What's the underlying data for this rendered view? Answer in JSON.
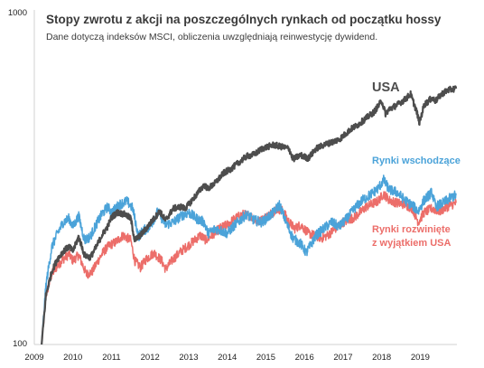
{
  "chart_data": {
    "type": "line",
    "title": "Stopy zwrotu z akcji na poszczególnych rynkach od początku hossy",
    "subtitle": "Dane dotyczą indeksów MSCI, obliczenia uwzględniają reinwestycję dywidend.",
    "yscale": "log",
    "ylim": [
      100,
      1000
    ],
    "yticks": [
      "100",
      "1000"
    ],
    "xlim": [
      2009.0,
      2019.95
    ],
    "xticks": [
      "2009",
      "2010",
      "2011",
      "2012",
      "2013",
      "2014",
      "2015",
      "2016",
      "2017",
      "2018",
      "2019"
    ],
    "grid": false,
    "legend": "inline labels",
    "colors": {
      "usa": "#4d4d4d",
      "em": "#4ba3d9",
      "dev": "#ec6e6a"
    },
    "series": [
      {
        "key": "usa",
        "name": "USA",
        "x": [
          2009.19,
          2009.3,
          2009.45,
          2009.6,
          2009.75,
          2009.9,
          2010.0,
          2010.15,
          2010.3,
          2010.45,
          2010.6,
          2010.75,
          2010.9,
          2011.0,
          2011.15,
          2011.35,
          2011.5,
          2011.6,
          2011.75,
          2011.9,
          2012.0,
          2012.25,
          2012.4,
          2012.6,
          2012.8,
          2012.9,
          2013.0,
          2013.4,
          2013.5,
          2013.7,
          2013.9,
          2014.1,
          2014.3,
          2014.5,
          2014.7,
          2014.9,
          2015.2,
          2015.4,
          2015.6,
          2015.7,
          2015.9,
          2016.1,
          2016.3,
          2016.5,
          2016.7,
          2016.9,
          2017.2,
          2017.4,
          2017.6,
          2017.8,
          2018.0,
          2018.1,
          2018.2,
          2018.4,
          2018.6,
          2018.75,
          2018.9,
          2018.98,
          2019.1,
          2019.3,
          2019.4,
          2019.55,
          2019.7,
          2019.85,
          2019.93
        ],
        "y": [
          100,
          140,
          165,
          180,
          190,
          196,
          190,
          210,
          185,
          182,
          195,
          212,
          225,
          240,
          248,
          245,
          238,
          205,
          212,
          222,
          230,
          250,
          235,
          255,
          258,
          255,
          262,
          300,
          292,
          305,
          325,
          335,
          350,
          365,
          370,
          385,
          395,
          390,
          385,
          358,
          368,
          360,
          385,
          395,
          402,
          410,
          440,
          455,
          475,
          495,
          535,
          490,
          505,
          520,
          540,
          560,
          500,
          460,
          520,
          545,
          535,
          560,
          575,
          580,
          582
        ]
      },
      {
        "key": "em",
        "name": "Rynki wschodzące",
        "x": [
          2009.19,
          2009.3,
          2009.45,
          2009.6,
          2009.75,
          2009.9,
          2010.0,
          2010.15,
          2010.3,
          2010.45,
          2010.6,
          2010.75,
          2010.9,
          2011.0,
          2011.2,
          2011.4,
          2011.55,
          2011.7,
          2011.8,
          2012.0,
          2012.2,
          2012.4,
          2012.6,
          2012.8,
          2013.0,
          2013.2,
          2013.4,
          2013.5,
          2013.7,
          2014.0,
          2014.2,
          2014.5,
          2014.7,
          2014.9,
          2015.2,
          2015.35,
          2015.55,
          2015.7,
          2015.9,
          2016.05,
          2016.3,
          2016.5,
          2016.7,
          2016.9,
          2017.1,
          2017.3,
          2017.5,
          2017.7,
          2017.9,
          2018.05,
          2018.2,
          2018.4,
          2018.6,
          2018.8,
          2018.95,
          2019.1,
          2019.3,
          2019.4,
          2019.6,
          2019.8,
          2019.93
        ],
        "y": [
          100,
          150,
          195,
          215,
          232,
          238,
          225,
          242,
          205,
          210,
          228,
          245,
          258,
          248,
          262,
          268,
          255,
          210,
          218,
          225,
          250,
          228,
          232,
          242,
          248,
          238,
          232,
          215,
          222,
          215,
          228,
          245,
          235,
          232,
          248,
          262,
          228,
          208,
          200,
          188,
          212,
          222,
          232,
          225,
          238,
          255,
          270,
          280,
          292,
          310,
          290,
          285,
          270,
          260,
          250,
          270,
          285,
          258,
          265,
          275,
          280
        ]
      },
      {
        "key": "dev",
        "name": "Rynki rozwinięte\nz wyjątkiem USA",
        "x": [
          2009.19,
          2009.3,
          2009.45,
          2009.6,
          2009.75,
          2009.9,
          2010.0,
          2010.15,
          2010.35,
          2010.5,
          2010.65,
          2010.8,
          2010.95,
          2011.1,
          2011.3,
          2011.5,
          2011.6,
          2011.75,
          2011.9,
          2012.1,
          2012.3,
          2012.4,
          2012.6,
          2012.8,
          2013.0,
          2013.3,
          2013.45,
          2013.6,
          2013.8,
          2014.0,
          2014.2,
          2014.4,
          2014.6,
          2014.8,
          2015.0,
          2015.3,
          2015.45,
          2015.6,
          2015.75,
          2015.9,
          2016.1,
          2016.45,
          2016.6,
          2016.8,
          2017.0,
          2017.3,
          2017.6,
          2017.9,
          2018.05,
          2018.2,
          2018.4,
          2018.6,
          2018.8,
          2018.95,
          2019.1,
          2019.3,
          2019.5,
          2019.7,
          2019.93
        ],
        "y": [
          100,
          140,
          162,
          172,
          180,
          186,
          178,
          185,
          162,
          165,
          178,
          190,
          198,
          202,
          212,
          205,
          178,
          170,
          180,
          188,
          178,
          168,
          180,
          190,
          198,
          212,
          205,
          212,
          222,
          228,
          238,
          245,
          242,
          232,
          240,
          255,
          250,
          232,
          222,
          228,
          215,
          208,
          212,
          222,
          232,
          240,
          258,
          268,
          282,
          270,
          265,
          262,
          255,
          232,
          248,
          255,
          250,
          258,
          265
        ]
      }
    ],
    "annotations": [
      {
        "series": "usa",
        "text": "USA"
      },
      {
        "series": "em",
        "text": "Rynki wschodzące"
      },
      {
        "series": "dev",
        "text": "Rynki rozwinięte\nz wyjątkiem USA"
      }
    ]
  }
}
